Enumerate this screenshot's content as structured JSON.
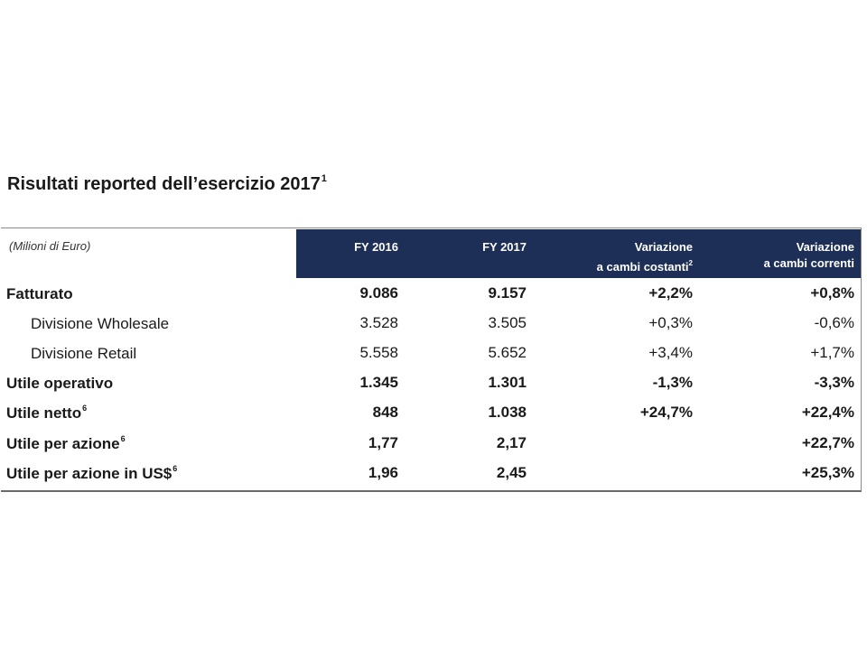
{
  "title": {
    "text": "Risultati reported dell’esercizio 2017",
    "footnote": "1"
  },
  "table": {
    "units_label": "(Milioni di Euro)",
    "headers": {
      "fy2016": "FY 2016",
      "fy2017": "FY 2017",
      "var_const_line1": "Variazione",
      "var_const_line2": "a cambi costanti",
      "var_const_footnote": "2",
      "var_curr_line1": "Variazione",
      "var_curr_line2": "a cambi correnti"
    },
    "rows": [
      {
        "label": "Fatturato",
        "footnote": "",
        "fy2016": "9.086",
        "fy2017": "9.157",
        "var_const": "+2,2%",
        "var_curr": "+0,8%"
      },
      {
        "label": "Divisione Wholesale",
        "footnote": "",
        "fy2016": "3.528",
        "fy2017": "3.505",
        "var_const": "+0,3%",
        "var_curr": "-0,6%"
      },
      {
        "label": "Divisione Retail",
        "footnote": "",
        "fy2016": "5.558",
        "fy2017": "5.652",
        "var_const": "+3,4%",
        "var_curr": "+1,7%"
      },
      {
        "label": "Utile operativo",
        "footnote": "",
        "fy2016": "1.345",
        "fy2017": "1.301",
        "var_const": "-1,3%",
        "var_curr": "-3,3%"
      },
      {
        "label": "Utile netto",
        "footnote": "6",
        "fy2016": "848",
        "fy2017": "1.038",
        "var_const": "+24,7%",
        "var_curr": "+22,4%"
      },
      {
        "label": "Utile per azione",
        "footnote": "6",
        "fy2016": "1,77",
        "fy2017": "2,17",
        "var_const": "",
        "var_curr": "+22,7%"
      },
      {
        "label": "Utile per azione in US$",
        "footnote": "6",
        "fy2016": "1,96",
        "fy2017": "2,45",
        "var_const": "",
        "var_curr": "+25,3%"
      }
    ]
  },
  "colors": {
    "header_band": "#1d2f57",
    "header_text": "#ffffff",
    "body_text": "#1a1a1a"
  }
}
